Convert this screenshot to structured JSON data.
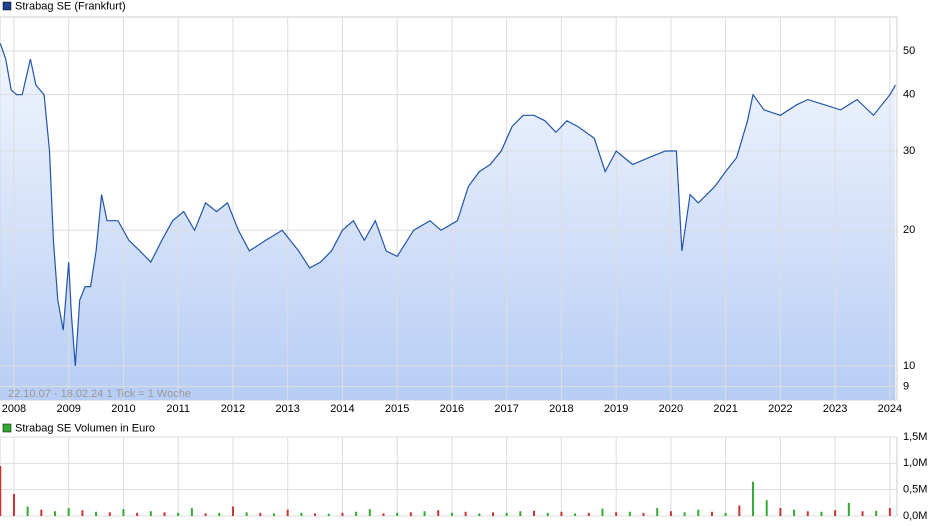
{
  "chart_data": [
    {
      "type": "line",
      "title": "Strabag SE (Frankfurt)",
      "annotation": "22.10.07 - 18.02.24   1 Tick = 1 Woche",
      "color": "#2255aa",
      "log_y": true,
      "grid": true,
      "x": [
        2007.75,
        2007.85,
        2007.95,
        2008.05,
        2008.15,
        2008.3,
        2008.4,
        2008.55,
        2008.65,
        2008.72,
        2008.8,
        2008.9,
        2009.0,
        2009.05,
        2009.12,
        2009.2,
        2009.3,
        2009.4,
        2009.5,
        2009.6,
        2009.7,
        2009.9,
        2010.1,
        2010.3,
        2010.5,
        2010.7,
        2010.9,
        2011.1,
        2011.3,
        2011.5,
        2011.7,
        2011.9,
        2012.1,
        2012.3,
        2012.6,
        2012.9,
        2013.2,
        2013.4,
        2013.6,
        2013.8,
        2014.0,
        2014.2,
        2014.4,
        2014.6,
        2014.8,
        2015.0,
        2015.3,
        2015.6,
        2015.8,
        2016.1,
        2016.3,
        2016.5,
        2016.7,
        2016.9,
        2017.1,
        2017.3,
        2017.5,
        2017.7,
        2017.9,
        2018.1,
        2018.3,
        2018.6,
        2018.8,
        2019.0,
        2019.3,
        2019.6,
        2019.9,
        2020.1,
        2020.2,
        2020.35,
        2020.5,
        2020.8,
        2021.0,
        2021.2,
        2021.4,
        2021.5,
        2021.7,
        2022.0,
        2022.3,
        2022.5,
        2022.8,
        2023.1,
        2023.4,
        2023.7,
        2024.0,
        2024.1
      ],
      "values": [
        52,
        48,
        41,
        40,
        40,
        48,
        42,
        40,
        30,
        19,
        14,
        12,
        17,
        13,
        10,
        14,
        15,
        15,
        18,
        24,
        21,
        21,
        19,
        18,
        17,
        19,
        21,
        22,
        20,
        23,
        22,
        23,
        20,
        18,
        19,
        20,
        18,
        16.5,
        17,
        18,
        20,
        21,
        19,
        21,
        18,
        17.5,
        20,
        21,
        20,
        21,
        25,
        27,
        28,
        30,
        34,
        36,
        36,
        35,
        33,
        35,
        34,
        32,
        27,
        30,
        28,
        29,
        30,
        30,
        18,
        24,
        23,
        25,
        27,
        29,
        35,
        40,
        37,
        36,
        38,
        39,
        38,
        37,
        39,
        36,
        40,
        42
      ],
      "xlim": [
        2007.745,
        2024.13
      ],
      "xticks": [
        2008,
        2009,
        2010,
        2011,
        2012,
        2013,
        2014,
        2015,
        2016,
        2017,
        2018,
        2019,
        2020,
        2021,
        2022,
        2023,
        2024
      ],
      "ylim": [
        8.4,
        59.5
      ],
      "yticks": [
        9,
        10,
        20,
        30,
        40,
        50
      ]
    },
    {
      "type": "bar",
      "title": "Strabag SE Volumen in Euro",
      "legend_color": "#33aa33",
      "grid": true,
      "x": [
        2007.75,
        2008,
        2008.25,
        2008.5,
        2008.75,
        2009,
        2009.25,
        2009.5,
        2009.75,
        2010,
        2010.25,
        2010.5,
        2010.75,
        2011,
        2011.25,
        2011.5,
        2011.75,
        2012,
        2012.25,
        2012.5,
        2012.75,
        2013,
        2013.25,
        2013.5,
        2013.75,
        2014,
        2014.25,
        2014.5,
        2014.75,
        2015,
        2015.25,
        2015.5,
        2015.75,
        2016,
        2016.25,
        2016.5,
        2016.75,
        2017,
        2017.25,
        2017.5,
        2017.75,
        2018,
        2018.25,
        2018.5,
        2018.75,
        2019,
        2019.25,
        2019.5,
        2019.75,
        2020,
        2020.25,
        2020.5,
        2020.75,
        2021,
        2021.25,
        2021.5,
        2021.75,
        2022,
        2022.25,
        2022.5,
        2022.75,
        2023,
        2023.25,
        2023.5,
        2023.75,
        2024
      ],
      "values": [
        950000,
        420000,
        180000,
        120000,
        90000,
        150000,
        110000,
        80000,
        70000,
        130000,
        60000,
        90000,
        70000,
        60000,
        150000,
        50000,
        60000,
        180000,
        70000,
        60000,
        50000,
        120000,
        60000,
        50000,
        45000,
        60000,
        80000,
        130000,
        50000,
        60000,
        70000,
        90000,
        110000,
        60000,
        80000,
        50000,
        70000,
        60000,
        90000,
        100000,
        60000,
        80000,
        50000,
        60000,
        140000,
        70000,
        80000,
        60000,
        150000,
        90000,
        70000,
        120000,
        80000,
        60000,
        200000,
        650000,
        300000,
        150000,
        120000,
        90000,
        80000,
        110000,
        250000,
        90000,
        100000,
        150000
      ],
      "colors": [
        "#cc3333",
        "#cc3333",
        "#33aa33",
        "#cc3333",
        "#33aa33",
        "#33aa33",
        "#cc3333",
        "#33aa33",
        "#cc3333",
        "#33aa33",
        "#cc3333",
        "#33aa33",
        "#cc3333",
        "#33aa33",
        "#33aa33",
        "#cc3333",
        "#33aa33",
        "#cc3333",
        "#33aa33",
        "#cc3333",
        "#33aa33",
        "#cc3333",
        "#33aa33",
        "#cc3333",
        "#33aa33",
        "#cc3333",
        "#33aa33",
        "#33aa33",
        "#cc3333",
        "#33aa33",
        "#cc3333",
        "#33aa33",
        "#cc3333",
        "#33aa33",
        "#cc3333",
        "#33aa33",
        "#cc3333",
        "#33aa33",
        "#33aa33",
        "#cc3333",
        "#33aa33",
        "#cc3333",
        "#33aa33",
        "#cc3333",
        "#33aa33",
        "#cc3333",
        "#33aa33",
        "#cc3333",
        "#33aa33",
        "#cc3333",
        "#33aa33",
        "#33aa33",
        "#cc3333",
        "#33aa33",
        "#cc3333",
        "#33aa33",
        "#33aa33",
        "#cc3333",
        "#33aa33",
        "#cc3333",
        "#33aa33",
        "#cc3333",
        "#33aa33",
        "#cc3333",
        "#33aa33",
        "#cc3333"
      ],
      "xlim": [
        2007.745,
        2024.13
      ],
      "ylim": [
        0,
        1500000
      ],
      "yticks": [
        {
          "value": 0,
          "label": "0,0M"
        },
        {
          "value": 500000,
          "label": "0,5M"
        },
        {
          "value": 1000000,
          "label": "1,0M"
        },
        {
          "value": 1500000,
          "label": "1,5M"
        }
      ]
    }
  ]
}
